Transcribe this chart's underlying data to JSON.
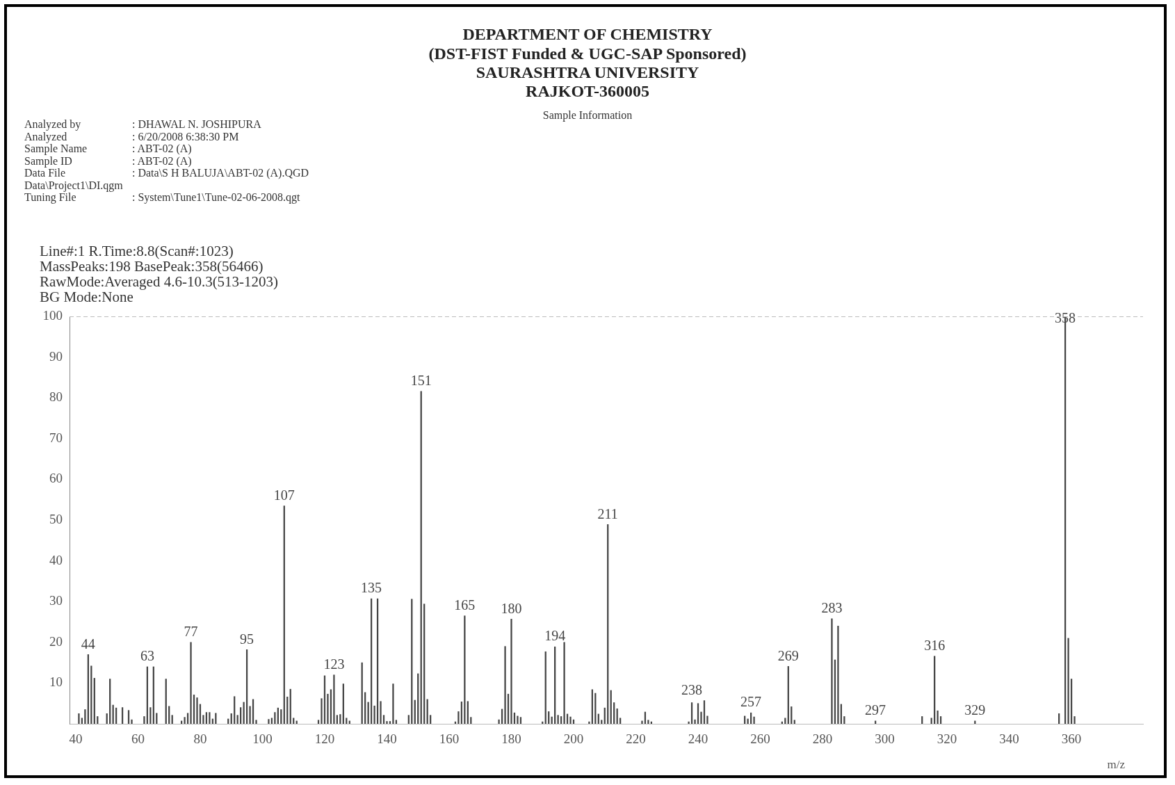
{
  "chart_data": {
    "type": "bar",
    "title": "DEPARTMENT OF CHEMISTRY",
    "subtitle": "(DST-FIST Funded & UGC-SAP Sponsored)\nSAURASHTRA UNIVERSITY\nRAJKOT-360005",
    "xlabel": "m/z",
    "annotations": [
      "Sample Information",
      "Analyzed by : DHAWAL N. JOSHIPURA",
      "Analyzed : 6/20/2008 6:38:30 PM",
      "Sample Name : ABT-02 (A)",
      "Sample ID : ABT-02 (A)",
      "Data File : Data\\S H BALUJA\\ABT-02 (A).QGD",
      "Data\\Project1\\DI.qgm",
      "Tuning File : System\\Tune1\\Tune-02-06-2008.qgt",
      "Line#:1   R.Time:8.8(Scan#:1023)",
      "MassPeaks:198   BasePeak:358(56466)",
      "RawMode:Averaged 4.6-10.3(513-1203)",
      "BG Mode:None",
      {
        "text": "44",
        "x": 44,
        "y": 17
      },
      {
        "text": "63",
        "x": 63,
        "y": 14
      },
      {
        "text": "77",
        "x": 77,
        "y": 20
      },
      {
        "text": "95",
        "x": 95,
        "y": 18.2
      },
      {
        "text": "107",
        "x": 107,
        "y": 53.5
      },
      {
        "text": "123",
        "x": 123,
        "y": 12
      },
      {
        "text": "135",
        "x": 135,
        "y": 30.7
      },
      {
        "text": "151",
        "x": 151,
        "y": 81.6
      },
      {
        "text": "165",
        "x": 165,
        "y": 26.5
      },
      {
        "text": "180",
        "x": 180,
        "y": 25.7
      },
      {
        "text": "194",
        "x": 194,
        "y": 18.9
      },
      {
        "text": "211",
        "x": 211,
        "y": 48.9
      },
      {
        "text": "238",
        "x": 238,
        "y": 5.7
      },
      {
        "text": "257",
        "x": 257,
        "y": 2.7
      },
      {
        "text": "269",
        "x": 269,
        "y": 14.1
      },
      {
        "text": "283",
        "x": 283,
        "y": 25.8
      },
      {
        "text": "297",
        "x": 297,
        "y": 0.7
      },
      {
        "text": "316",
        "x": 316,
        "y": 16.6
      },
      {
        "text": "329",
        "x": 329,
        "y": 0.7
      },
      {
        "text": "358",
        "x": 358,
        "y": 97
      }
    ],
    "x": [
      41,
      42,
      43,
      44,
      45,
      46,
      47,
      50,
      51,
      52,
      53,
      55,
      57,
      58,
      62,
      63,
      64,
      65,
      66,
      69,
      70,
      71,
      74,
      75,
      76,
      77,
      78,
      79,
      80,
      81,
      82,
      83,
      84,
      85,
      89,
      90,
      91,
      92,
      93,
      94,
      95,
      96,
      97,
      98,
      102,
      103,
      104,
      105,
      106,
      107,
      108,
      109,
      110,
      111,
      118,
      119,
      120,
      121,
      122,
      123,
      124,
      125,
      126,
      127,
      128,
      132,
      133,
      134,
      135,
      136,
      137,
      138,
      139,
      140,
      141,
      142,
      143,
      147,
      148,
      149,
      150,
      151,
      152,
      153,
      154,
      162,
      163,
      164,
      165,
      166,
      167,
      176,
      177,
      178,
      179,
      180,
      181,
      182,
      183,
      190,
      191,
      192,
      193,
      194,
      195,
      196,
      197,
      198,
      199,
      200,
      205,
      206,
      207,
      208,
      209,
      210,
      211,
      212,
      213,
      214,
      215,
      222,
      223,
      224,
      225,
      237,
      238,
      239,
      240,
      241,
      242,
      243,
      255,
      256,
      257,
      258,
      267,
      268,
      269,
      270,
      271,
      283,
      284,
      285,
      286,
      287,
      297,
      312,
      315,
      316,
      317,
      318,
      329,
      356,
      358,
      359,
      360,
      361
    ],
    "values": [
      2.5,
      1.4,
      3.5,
      17,
      14.2,
      11.2,
      1.8,
      2.5,
      11,
      4.6,
      3.9,
      4,
      3.3,
      1,
      1.8,
      14,
      4,
      14,
      2.6,
      11,
      4.3,
      2.1,
      0.7,
      1.6,
      2.6,
      20,
      7.1,
      6.4,
      4.8,
      2.1,
      2.8,
      2.8,
      1.2,
      2.6,
      1.2,
      2.5,
      6.7,
      2.1,
      4,
      5.3,
      18.2,
      4.3,
      6,
      0.9,
      1.1,
      1.4,
      2.8,
      3.9,
      3.5,
      53.5,
      6.6,
      8.5,
      1.4,
      0.7,
      0.9,
      6.2,
      11.8,
      7.3,
      8.4,
      12,
      2.1,
      2.3,
      9.8,
      1.4,
      0.7,
      15,
      7.7,
      5.3,
      30.7,
      4.4,
      30.7,
      5.5,
      2.1,
      0.6,
      0.6,
      9.8,
      0.9,
      2.1,
      30.6,
      5.8,
      12.3,
      81.6,
      29.4,
      6,
      2.1,
      0.5,
      3,
      5.4,
      26.5,
      5.5,
      1.6,
      1,
      3.6,
      19,
      7.3,
      25.7,
      2.7,
      1.9,
      1.6,
      0.5,
      17.7,
      3,
      1.7,
      18.9,
      2.1,
      1.8,
      20,
      2.4,
      1.7,
      1,
      0.5,
      8.4,
      7.5,
      2.4,
      0.9,
      3.9,
      48.9,
      8.2,
      5.2,
      3.7,
      1.4,
      0.7,
      2.9,
      0.9,
      0.5,
      0.5,
      5.2,
      1,
      5,
      2.9,
      5.7,
      1.9,
      1.9,
      1.2,
      2.7,
      1.7,
      0.5,
      1.4,
      14.1,
      4.2,
      0.9,
      25.8,
      15.7,
      24,
      4.8,
      1.8,
      0.7,
      1.8,
      1.4,
      16.6,
      3.2,
      1.8,
      0.7,
      2.5,
      100,
      21,
      11,
      1.8
    ],
    "color": "#444444",
    "xlim": [
      38,
      383
    ],
    "xticks": [
      40,
      60,
      80,
      100,
      120,
      140,
      160,
      180,
      200,
      220,
      240,
      260,
      280,
      300,
      320,
      340,
      360
    ],
    "ylim": [
      0,
      100
    ],
    "yticks": [
      10,
      20,
      30,
      40,
      50,
      60,
      70,
      80,
      90,
      100
    ],
    "grid": false,
    "legend": false
  }
}
